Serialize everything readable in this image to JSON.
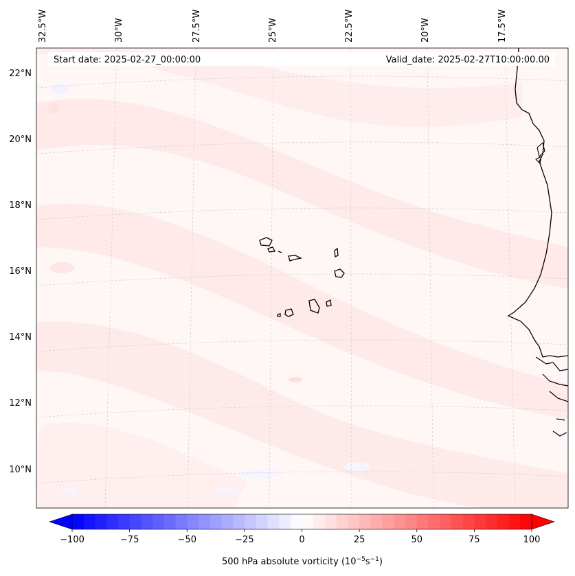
{
  "header": {
    "start_date": "Start date: 2025-02-27_00:00:00",
    "valid_date": "Valid_date: 2025-02-27T10:00:00.00"
  },
  "longitude_labels": [
    "32.5°W",
    "30°W",
    "27.5°W",
    "25°W",
    "22.5°W",
    "20°W",
    "17.5°W"
  ],
  "latitude_labels": [
    "22°N",
    "20°N",
    "18°N",
    "16°N",
    "14°N",
    "12°N",
    "10°N"
  ],
  "colorbar": {
    "label": "500 hPa absolute vorticity (10",
    "label_exp1": "−5",
    "label_mid": "s",
    "label_exp2": "−1",
    "label_end": ")",
    "ticks": [
      "−100",
      "−75",
      "−50",
      "−25",
      "0",
      "25",
      "50",
      "75",
      "100"
    ],
    "range": [
      -100,
      100
    ],
    "levels": 41,
    "colormap": "bwr",
    "colors": {
      "negative": "#0000ff",
      "zero": "#ffffff",
      "positive": "#ff0000"
    }
  },
  "map": {
    "region": "Cabo Verde / West African coast",
    "lon_range": [
      "33°W",
      "15°W"
    ],
    "lat_range": [
      "9°N",
      "22.7°N"
    ],
    "field": "500 hPa absolute vorticity",
    "gridlines": true
  }
}
